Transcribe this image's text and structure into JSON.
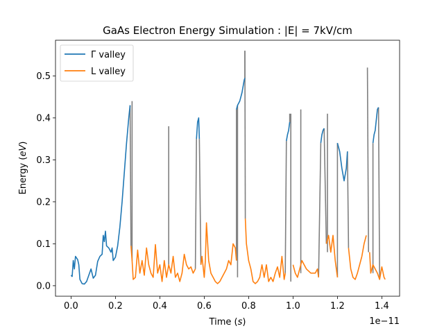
{
  "chart_data": {
    "type": "line",
    "title": "GaAs Electron Energy Simulation : |E| = 7kV/cm",
    "xlabel_prefix": "Time (",
    "xlabel_var": "s",
    "xlabel_suffix": ")",
    "ylabel_prefix": "Energy (",
    "ylabel_var": "eV",
    "ylabel_suffix": ")",
    "x_offset_text": "1e−11",
    "x_scale": 1e-11,
    "xlim": [
      -0.07,
      1.48
    ],
    "ylim": [
      -0.025,
      0.585
    ],
    "xticks": [
      0.0,
      0.2,
      0.4,
      0.6,
      0.8,
      1.0,
      1.2,
      1.4
    ],
    "xtick_labels": [
      "0.0",
      "0.2",
      "0.4",
      "0.6",
      "0.8",
      "1.0",
      "1.2",
      "1.4"
    ],
    "yticks": [
      0.0,
      0.1,
      0.2,
      0.3,
      0.4,
      0.5
    ],
    "ytick_labels": [
      "0.0",
      "0.1",
      "0.2",
      "0.3",
      "0.4",
      "0.5"
    ],
    "grid": false,
    "legend_position": "top-left",
    "series": [
      {
        "name": "Γ valley",
        "color": "#1f77b4",
        "segments": [
          [
            [
              0.0,
              0.025
            ],
            [
              0.005,
              0.022
            ],
            [
              0.01,
              0.06
            ],
            [
              0.015,
              0.04
            ],
            [
              0.02,
              0.07
            ],
            [
              0.03,
              0.062
            ],
            [
              0.035,
              0.05
            ],
            [
              0.04,
              0.015
            ],
            [
              0.05,
              0.005
            ],
            [
              0.06,
              0.004
            ],
            [
              0.07,
              0.01
            ],
            [
              0.08,
              0.025
            ],
            [
              0.09,
              0.04
            ],
            [
              0.1,
              0.018
            ],
            [
              0.11,
              0.025
            ],
            [
              0.12,
              0.058
            ],
            [
              0.13,
              0.07
            ],
            [
              0.14,
              0.075
            ],
            [
              0.145,
              0.12
            ],
            [
              0.15,
              0.105
            ],
            [
              0.155,
              0.13
            ],
            [
              0.16,
              0.095
            ],
            [
              0.17,
              0.09
            ],
            [
              0.18,
              0.08
            ],
            [
              0.185,
              0.09
            ],
            [
              0.19,
              0.06
            ],
            [
              0.2,
              0.068
            ],
            [
              0.21,
              0.095
            ],
            [
              0.22,
              0.14
            ],
            [
              0.23,
              0.2
            ],
            [
              0.24,
              0.27
            ],
            [
              0.25,
              0.34
            ],
            [
              0.26,
              0.4
            ],
            [
              0.266,
              0.43
            ]
          ],
          [
            [
              0.565,
              0.35
            ],
            [
              0.57,
              0.39
            ],
            [
              0.575,
              0.4
            ],
            [
              0.578,
              0.35
            ]
          ],
          [
            [
              0.745,
              0.42
            ],
            [
              0.75,
              0.43
            ],
            [
              0.76,
              0.44
            ],
            [
              0.77,
              0.46
            ],
            [
              0.78,
              0.49
            ],
            [
              0.783,
              0.495
            ]
          ],
          [
            [
              0.97,
              0.345
            ],
            [
              0.975,
              0.36
            ],
            [
              0.98,
              0.37
            ],
            [
              0.985,
              0.39
            ]
          ],
          [
            [
              1.125,
              0.34
            ],
            [
              1.13,
              0.36
            ],
            [
              1.135,
              0.37
            ],
            [
              1.14,
              0.375
            ]
          ],
          [
            [
              1.2,
              0.34
            ],
            [
              1.21,
              0.32
            ],
            [
              1.22,
              0.28
            ],
            [
              1.23,
              0.25
            ],
            [
              1.24,
              0.28
            ],
            [
              1.245,
              0.32
            ]
          ],
          [
            [
              1.36,
              0.34
            ],
            [
              1.365,
              0.36
            ],
            [
              1.37,
              0.37
            ],
            [
              1.38,
              0.42
            ],
            [
              1.385,
              0.425
            ]
          ]
        ]
      },
      {
        "name": "L valley",
        "color": "#ff7f0e",
        "segments": [
          [
            [
              0.27,
              0.095
            ],
            [
              0.275,
              0.06
            ],
            [
              0.28,
              0.015
            ],
            [
              0.29,
              0.02
            ],
            [
              0.3,
              0.085
            ],
            [
              0.31,
              0.03
            ],
            [
              0.32,
              0.06
            ],
            [
              0.33,
              0.025
            ],
            [
              0.34,
              0.09
            ],
            [
              0.35,
              0.05
            ],
            [
              0.36,
              0.03
            ],
            [
              0.37,
              0.02
            ],
            [
              0.38,
              0.098
            ],
            [
              0.39,
              0.03
            ],
            [
              0.4,
              0.05
            ],
            [
              0.41,
              0.01
            ],
            [
              0.42,
              0.06
            ],
            [
              0.43,
              0.02
            ],
            [
              0.44,
              0.05
            ],
            [
              0.45,
              0.03
            ],
            [
              0.46,
              0.07
            ],
            [
              0.47,
              0.02
            ],
            [
              0.48,
              0.03
            ],
            [
              0.49,
              0.01
            ],
            [
              0.5,
              0.03
            ],
            [
              0.51,
              0.075
            ],
            [
              0.52,
              0.05
            ],
            [
              0.53,
              0.04
            ],
            [
              0.54,
              0.045
            ],
            [
              0.55,
              0.03
            ],
            [
              0.56,
              0.04
            ]
          ],
          [
            [
              0.585,
              0.05
            ],
            [
              0.59,
              0.07
            ],
            [
              0.6,
              0.02
            ],
            [
              0.605,
              0.06
            ],
            [
              0.61,
              0.15
            ],
            [
              0.62,
              0.06
            ],
            [
              0.63,
              0.03
            ],
            [
              0.64,
              0.02
            ],
            [
              0.65,
              0.01
            ],
            [
              0.66,
              0.005
            ],
            [
              0.67,
              0.01
            ],
            [
              0.68,
              0.02
            ],
            [
              0.69,
              0.03
            ],
            [
              0.7,
              0.04
            ],
            [
              0.71,
              0.06
            ],
            [
              0.72,
              0.05
            ],
            [
              0.73,
              0.1
            ],
            [
              0.74,
              0.09
            ],
            [
              0.745,
              0.06
            ]
          ],
          [
            [
              0.785,
              0.16
            ],
            [
              0.79,
              0.1
            ],
            [
              0.8,
              0.06
            ],
            [
              0.81,
              0.04
            ],
            [
              0.82,
              0.01
            ],
            [
              0.83,
              0.005
            ],
            [
              0.84,
              0.01
            ],
            [
              0.85,
              0.02
            ],
            [
              0.86,
              0.05
            ],
            [
              0.87,
              0.02
            ],
            [
              0.88,
              0.05
            ],
            [
              0.89,
              0.01
            ],
            [
              0.9,
              0.02
            ],
            [
              0.91,
              0.01
            ],
            [
              0.92,
              0.03
            ],
            [
              0.93,
              0.045
            ],
            [
              0.94,
              0.02
            ],
            [
              0.95,
              0.07
            ],
            [
              0.96,
              0.015
            ],
            [
              0.965,
              0.03
            ]
          ],
          [
            [
              1.0,
              0.05
            ],
            [
              1.01,
              0.03
            ],
            [
              1.02,
              0.02
            ],
            [
              1.04,
              0.06
            ],
            [
              1.06,
              0.04
            ],
            [
              1.08,
              0.03
            ],
            [
              1.1,
              0.03
            ],
            [
              1.11,
              0.04
            ],
            [
              1.115,
              0.02
            ]
          ],
          [
            [
              1.15,
              0.1
            ],
            [
              1.16,
              0.12
            ],
            [
              1.17,
              0.08
            ],
            [
              1.18,
              0.12
            ],
            [
              1.19,
              0.06
            ],
            [
              1.2,
              0.02
            ]
          ],
          [
            [
              1.25,
              0.09
            ],
            [
              1.26,
              0.04
            ],
            [
              1.27,
              0.02
            ],
            [
              1.28,
              0.015
            ],
            [
              1.29,
              0.03
            ],
            [
              1.3,
              0.05
            ],
            [
              1.31,
              0.07
            ],
            [
              1.32,
              0.1
            ],
            [
              1.33,
              0.12
            ]
          ],
          [
            [
              1.345,
              0.08
            ],
            [
              1.35,
              0.03
            ],
            [
              1.36,
              0.05
            ],
            [
              1.37,
              0.04
            ],
            [
              1.38,
              0.03
            ],
            [
              1.39,
              0.015
            ],
            [
              1.4,
              0.045
            ],
            [
              1.41,
              0.02
            ],
            [
              1.415,
              0.015
            ]
          ]
        ]
      },
      {
        "name": "",
        "color": "#7f7f7f",
        "segments": [
          [
            [
              0.266,
              0.43
            ],
            [
              0.27,
              0.095
            ]
          ],
          [
            [
              0.275,
              0.44
            ],
            [
              0.275,
              0.06
            ]
          ],
          [
            [
              0.44,
              0.38
            ],
            [
              0.44,
              0.05
            ]
          ],
          [
            [
              0.56,
              0.04
            ],
            [
              0.565,
              0.35
            ]
          ],
          [
            [
              0.578,
              0.35
            ],
            [
              0.585,
              0.05
            ]
          ],
          [
            [
              0.745,
              0.06
            ],
            [
              0.745,
              0.42
            ]
          ],
          [
            [
              0.75,
              0.43
            ],
            [
              0.75,
              0.02
            ]
          ],
          [
            [
              0.783,
              0.495
            ],
            [
              0.783,
              0.56
            ]
          ],
          [
            [
              0.783,
              0.56
            ],
            [
              0.785,
              0.16
            ]
          ],
          [
            [
              0.965,
              0.03
            ],
            [
              0.97,
              0.345
            ]
          ],
          [
            [
              0.985,
              0.39
            ],
            [
              0.985,
              0.41
            ]
          ],
          [
            [
              0.99,
              0.41
            ],
            [
              0.99,
              0.01
            ]
          ],
          [
            [
              1.035,
              0.42
            ],
            [
              1.035,
              0.03
            ]
          ],
          [
            [
              1.115,
              0.02
            ],
            [
              1.125,
              0.34
            ]
          ],
          [
            [
              1.14,
              0.375
            ],
            [
              1.15,
              0.1
            ]
          ],
          [
            [
              1.155,
              0.41
            ],
            [
              1.155,
              0.08
            ]
          ],
          [
            [
              1.2,
              0.02
            ],
            [
              1.2,
              0.34
            ]
          ],
          [
            [
              1.245,
              0.32
            ],
            [
              1.25,
              0.09
            ]
          ],
          [
            [
              1.335,
              0.52
            ],
            [
              1.34,
              0.08
            ]
          ],
          [
            [
              1.36,
              0.34
            ],
            [
              1.36,
              0.03
            ]
          ],
          [
            [
              1.385,
              0.425
            ],
            [
              1.39,
              0.015
            ]
          ]
        ]
      }
    ]
  }
}
